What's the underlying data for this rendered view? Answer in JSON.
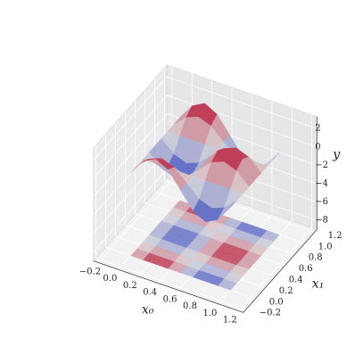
{
  "chart_data": {
    "type": "surface3d",
    "x_label": "x₀",
    "y_label": "x₁",
    "z_label": "y",
    "x0": [
      0,
      0.125,
      0.25,
      0.375,
      0.5,
      0.625,
      0.75,
      0.875,
      1
    ],
    "x1": [
      0,
      0.125,
      0.25,
      0.375,
      0.5,
      0.625,
      0.75,
      0.875,
      1
    ],
    "z": [
      [
        0,
        0,
        0,
        0,
        0,
        0,
        0,
        0,
        0
      ],
      [
        1.77,
        1.25,
        0,
        -1.25,
        -1.77,
        -1.25,
        0,
        1.25,
        1.77
      ],
      [
        2.5,
        1.77,
        0,
        -1.77,
        -2.5,
        -1.77,
        0,
        1.77,
        2.5
      ],
      [
        1.77,
        1.25,
        0,
        -1.25,
        -1.77,
        -1.25,
        0,
        1.25,
        1.77
      ],
      [
        0,
        0,
        0,
        0,
        0,
        0,
        0,
        0,
        0
      ],
      [
        -1.77,
        -1.25,
        0,
        1.25,
        1.77,
        1.25,
        0,
        -1.25,
        -1.77
      ],
      [
        -2.5,
        -1.77,
        0,
        1.77,
        2.5,
        1.77,
        0,
        -1.77,
        -2.5
      ],
      [
        -1.77,
        -1.25,
        0,
        1.25,
        1.77,
        1.25,
        0,
        -1.25,
        -1.77
      ],
      [
        0,
        0,
        0,
        0,
        0,
        0,
        0,
        0,
        0
      ]
    ],
    "contour_offset": -9,
    "colormap": "coolwarm",
    "xlim": [
      -0.25,
      1.25
    ],
    "ylim": [
      -0.25,
      1.25
    ],
    "zlim": [
      -9,
      3.3
    ],
    "xticks": [
      {
        "value": -0.2,
        "label": "−0.2"
      },
      {
        "value": 0,
        "label": "0.0"
      },
      0.2,
      0.4,
      0.6,
      0.8,
      {
        "value": 1,
        "label": "1.0"
      },
      1.2
    ],
    "yticks": [
      {
        "value": -0.2,
        "label": "−0.2"
      },
      {
        "value": 0,
        "label": "0.0"
      },
      0.2,
      0.4,
      0.6,
      0.8,
      {
        "value": 1,
        "label": "1.0"
      },
      1.2
    ],
    "zticks": [
      {
        "value": -8,
        "label": "−8"
      },
      {
        "value": -6,
        "label": "−6"
      },
      {
        "value": -4,
        "label": "−4"
      },
      {
        "value": -2,
        "label": "−2"
      },
      0,
      2
    ],
    "grid": true
  }
}
